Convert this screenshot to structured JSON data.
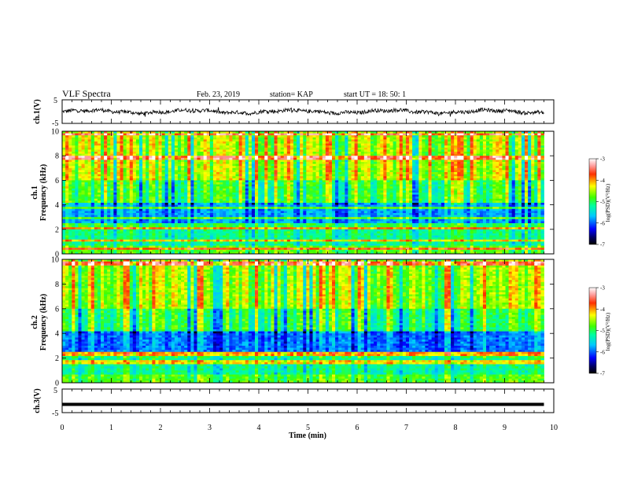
{
  "header": {
    "title": "VLF Spectra",
    "date": "Feb. 23, 2019",
    "station": "station= KAP",
    "start": "start  UT =   18: 50: 1"
  },
  "chart_data": [
    {
      "type": "line",
      "panel": "ch1-waveform",
      "ylabel": "ch.1(V)",
      "xlim": [
        0,
        10
      ],
      "ylim": [
        -5,
        5
      ],
      "yticks": [
        "5",
        "-5"
      ],
      "note": "noisy voltage waveform between about -2 and 2 V over 0 to 9.8 min"
    },
    {
      "type": "heatmap",
      "panel": "ch1-spectrogram",
      "ylabel": "ch.1\nFrequency  (kHz)",
      "xlim": [
        0,
        10
      ],
      "ylim": [
        0,
        10
      ],
      "yticks": [
        "0",
        "2",
        "4",
        "6",
        "8",
        "10"
      ],
      "data_extent_min": 9.8,
      "colorbar": {
        "label": "log(PSD)(V²/Hz)",
        "range": [
          -7,
          -3
        ],
        "ticks": [
          "-3",
          "-4",
          "-5",
          "-6",
          "-7"
        ]
      }
    },
    {
      "type": "heatmap",
      "panel": "ch2-spectrogram",
      "ylabel": "ch.2\nFrequency  (kHz)",
      "xlim": [
        0,
        10
      ],
      "ylim": [
        0,
        10
      ],
      "yticks": [
        "0",
        "2",
        "4",
        "6",
        "8",
        "10"
      ],
      "data_extent_min": 9.8,
      "colorbar": {
        "label": "log(PSD)(V²/Hz)",
        "range": [
          -7,
          -3
        ],
        "ticks": [
          "-3",
          "-4",
          "-5",
          "-6",
          "-7"
        ]
      }
    },
    {
      "type": "line",
      "panel": "ch3-waveform",
      "ylabel": "ch.3(V)",
      "xlim": [
        0,
        10
      ],
      "ylim": [
        -5,
        5
      ],
      "yticks": [
        "5",
        "-5"
      ],
      "x": [
        0,
        9.8
      ],
      "y": [
        -1.5,
        -1.5
      ]
    }
  ],
  "xaxis": {
    "label": "Time  (min)",
    "ticks": [
      "0",
      "1",
      "2",
      "3",
      "4",
      "5",
      "6",
      "7",
      "8",
      "9",
      "10"
    ]
  },
  "colors": {
    "axes": "#000000",
    "waveform": "#000000",
    "background": "#ffffff"
  }
}
